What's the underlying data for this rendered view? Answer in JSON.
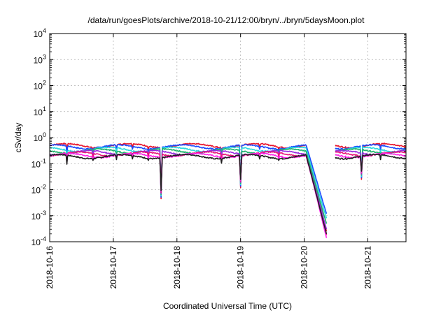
{
  "chart_data": {
    "type": "line",
    "title": "/data/run/goesPlots/archive/2018-10-21/12:00/bryn/../bryn/5daysMoon.plot",
    "xlabel": "Coordinated Universal Time (UTC)",
    "ylabel": "cSv/day",
    "yscale": "log",
    "ylim": [
      0.0001,
      10000
    ],
    "xlim": [
      0,
      5.6
    ],
    "grid": true,
    "x_tick_labels": [
      "2018-10-16",
      "2018-10-17",
      "2018-10-18",
      "2018-10-19",
      "2018-10-20",
      "2018-10-21"
    ],
    "x_tick_values": [
      0,
      1,
      2,
      3,
      4,
      5
    ],
    "y_ticks": [
      {
        "base": "10",
        "exp": "-4",
        "value": 0.0001
      },
      {
        "base": "10",
        "exp": "-3",
        "value": 0.001
      },
      {
        "base": "10",
        "exp": "-2",
        "value": 0.01
      },
      {
        "base": "10",
        "exp": "-1",
        "value": 0.1
      },
      {
        "base": "10",
        "exp": "0",
        "value": 1
      },
      {
        "base": "10",
        "exp": "1",
        "value": 10
      },
      {
        "base": "10",
        "exp": "2",
        "value": 100
      },
      {
        "base": "10",
        "exp": "3",
        "value": 1000
      },
      {
        "base": "10",
        "exp": "4",
        "value": 10000
      }
    ],
    "series": [
      {
        "color": "#e8132b",
        "base": 0.5,
        "dip": 0.00025
      },
      {
        "color": "#1a4bff",
        "base": 0.45,
        "dip": 0.0012
      },
      {
        "color": "#2bd8e0",
        "base": 0.36,
        "dip": 0.0008
      },
      {
        "color": "#1cb36b",
        "base": 0.31,
        "dip": 0.0005
      },
      {
        "color": "#9a2be0",
        "base": 0.27,
        "dip": 0.0003
      },
      {
        "color": "#e8137a",
        "base": 0.24,
        "dip": 0.00018
      },
      {
        "color": "#ff22e8",
        "base": 0.21,
        "dip": 0.00014
      },
      {
        "color": "#202020",
        "base": 0.19,
        "dip": 0.0002
      }
    ],
    "gap": [
      4.35,
      4.48
    ],
    "dips": [
      {
        "x": 0.27,
        "depth": 0.5
      },
      {
        "x": 0.68,
        "depth": 0.7
      },
      {
        "x": 1.05,
        "depth": 0.75
      },
      {
        "x": 1.3,
        "depth": 0.8
      },
      {
        "x": 1.55,
        "depth": 0.7
      },
      {
        "x": 1.75,
        "depth": 0.0045,
        "deep": true
      },
      {
        "x": 2.7,
        "depth": 0.55
      },
      {
        "x": 3.0,
        "depth": 0.012,
        "deep": true
      },
      {
        "x": 3.3,
        "depth": 0.8
      },
      {
        "x": 3.6,
        "depth": 0.7
      },
      {
        "x": 4.9,
        "depth": 0.025,
        "deep": true
      },
      {
        "x": 5.2,
        "depth": 0.75
      }
    ]
  }
}
